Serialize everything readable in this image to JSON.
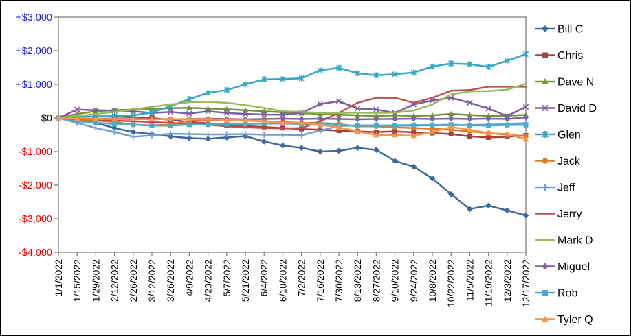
{
  "chart_data": {
    "type": "line",
    "title": "",
    "legend_position": "right",
    "grid": false,
    "x_labels": [
      "1/1/2022",
      "1/15/2022",
      "1/29/2022",
      "2/12/2022",
      "2/26/2022",
      "3/12/2022",
      "3/26/2022",
      "4/9/2022",
      "4/23/2022",
      "5/7/2022",
      "5/21/2022",
      "6/4/2022",
      "6/18/2022",
      "7/2/2022",
      "7/16/2022",
      "7/30/2022",
      "8/13/2022",
      "8/27/2022",
      "9/10/2022",
      "9/24/2022",
      "10/8/2022",
      "10/22/2022",
      "11/5/2022",
      "11/19/2022",
      "12/3/2022",
      "12/17/2022"
    ],
    "y_axis": {
      "min": -4000,
      "max": 3000,
      "step": 1000,
      "ticks": [
        {
          "label": "+$3,000",
          "value": 3000,
          "color": "#2222CC"
        },
        {
          "label": "+$2,000",
          "value": 2000,
          "color": "#2222CC"
        },
        {
          "label": "+$1,000",
          "value": 1000,
          "color": "#2222CC"
        },
        {
          "label": "$0",
          "value": 0,
          "color": "#000000"
        },
        {
          "label": "-$1,000",
          "value": -1000,
          "color": "#EE0000"
        },
        {
          "label": "-$2,000",
          "value": -2000,
          "color": "#EE0000"
        },
        {
          "label": "-$3,000",
          "value": -3000,
          "color": "#EE0000"
        },
        {
          "label": "-$4,000",
          "value": -4000,
          "color": "#EE0000"
        }
      ]
    },
    "axis_color": "#808080",
    "series": [
      {
        "name": "Bill C",
        "color": "#3E689E",
        "marker": "diamond",
        "values": [
          0,
          -80,
          -150,
          -300,
          -420,
          -480,
          -550,
          -600,
          -620,
          -580,
          -540,
          -700,
          -820,
          -890,
          -1000,
          -980,
          -890,
          -950,
          -1280,
          -1450,
          -1800,
          -2270,
          -2710,
          -2610,
          -2750,
          -2900
        ]
      },
      {
        "name": "Chris",
        "color": "#A8423F",
        "marker": "square",
        "values": [
          0,
          30,
          40,
          40,
          20,
          0,
          -60,
          -120,
          -160,
          -220,
          -240,
          -270,
          -300,
          -330,
          -350,
          -380,
          -400,
          -420,
          -400,
          -430,
          -450,
          -480,
          -550,
          -580,
          -560,
          -520
        ]
      },
      {
        "name": "Dave N",
        "color": "#73923D",
        "marker": "triangle",
        "values": [
          0,
          120,
          200,
          230,
          250,
          270,
          290,
          300,
          280,
          260,
          230,
          200,
          170,
          140,
          120,
          100,
          80,
          60,
          80,
          60,
          80,
          120,
          90,
          60,
          70,
          90
        ]
      },
      {
        "name": "David D",
        "color": "#795F9F",
        "marker": "x",
        "values": [
          0,
          250,
          230,
          220,
          200,
          150,
          180,
          130,
          200,
          150,
          120,
          100,
          100,
          150,
          410,
          500,
          280,
          250,
          150,
          400,
          520,
          600,
          450,
          280,
          60,
          330
        ]
      },
      {
        "name": "Glen",
        "color": "#35A7C4",
        "marker": "asterisk",
        "values": [
          0,
          30,
          50,
          60,
          80,
          160,
          350,
          560,
          750,
          830,
          1000,
          1150,
          1160,
          1180,
          1420,
          1490,
          1330,
          1270,
          1300,
          1350,
          1530,
          1620,
          1600,
          1520,
          1700,
          1900
        ]
      },
      {
        "name": "Jack",
        "color": "#DC7B2B",
        "marker": "circle",
        "values": [
          0,
          -50,
          -80,
          -120,
          -200,
          -220,
          -200,
          -80,
          -60,
          -60,
          -80,
          -100,
          -120,
          -150,
          -150,
          -180,
          -250,
          -250,
          -280,
          -300,
          -320,
          -350,
          -400,
          -450,
          -500,
          -540
        ]
      },
      {
        "name": "Jeff",
        "color": "#6F9DD4",
        "marker": "plus",
        "values": [
          0,
          -150,
          -300,
          -420,
          -560,
          -520,
          -470,
          -480,
          -490,
          -490,
          -480,
          -500,
          -500,
          -510,
          -380,
          -240,
          -220,
          -220,
          -230,
          -230,
          -220,
          -220,
          -210,
          -200,
          -180,
          -150
        ]
      },
      {
        "name": "Jerry",
        "color": "#C0504D",
        "marker": "none",
        "values": [
          0,
          -30,
          -50,
          -80,
          -100,
          -120,
          -150,
          -180,
          -200,
          -250,
          -280,
          -300,
          -310,
          -300,
          -100,
          150,
          450,
          600,
          600,
          450,
          600,
          810,
          830,
          930,
          930,
          930
        ]
      },
      {
        "name": "Mark D",
        "color": "#9BBB59",
        "marker": "none",
        "values": [
          0,
          60,
          120,
          180,
          250,
          330,
          400,
          470,
          480,
          450,
          380,
          300,
          200,
          180,
          150,
          150,
          160,
          150,
          160,
          220,
          400,
          700,
          790,
          800,
          840,
          1020
        ]
      },
      {
        "name": "Miguel",
        "color": "#8064A2",
        "marker": "diamond",
        "values": [
          0,
          -20,
          -30,
          -20,
          -40,
          -30,
          -40,
          -30,
          -20,
          -30,
          -40,
          -30,
          -20,
          -30,
          -20,
          -30,
          -40,
          -30,
          -30,
          -20,
          -30,
          -20,
          -30,
          -20,
          -30,
          20
        ]
      },
      {
        "name": "Rob",
        "color": "#4BACC6",
        "marker": "square",
        "values": [
          0,
          -100,
          -150,
          -180,
          -200,
          -230,
          -230,
          -200,
          -200,
          -180,
          -180,
          -170,
          -170,
          -180,
          -200,
          -220,
          -230,
          -230,
          -220,
          -210,
          -210,
          -200,
          -220,
          -230,
          -210,
          -210
        ]
      },
      {
        "name": "Tyler Q",
        "color": "#F79646",
        "marker": "triangle",
        "values": [
          0,
          -20,
          -30,
          -30,
          -30,
          -40,
          -30,
          -40,
          -30,
          -70,
          -70,
          -100,
          -150,
          -150,
          -200,
          -280,
          -400,
          -510,
          -510,
          -530,
          -420,
          -270,
          -350,
          -450,
          -480,
          -640
        ]
      }
    ]
  }
}
